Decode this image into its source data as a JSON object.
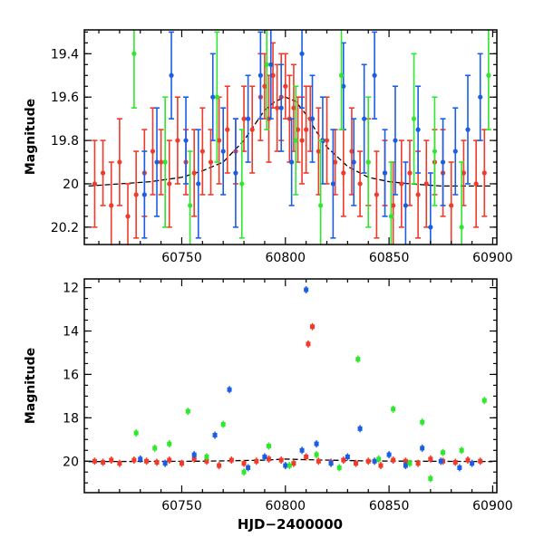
{
  "figure": {
    "xlabel": "HJD−2400000"
  },
  "series_colors": {
    "blue": "#1a5ee6",
    "green": "#2de82d",
    "red": "#f03a2a"
  },
  "chart_data": [
    {
      "type": "scatter",
      "panel": "top",
      "xlabel": "",
      "ylabel": "Magnitude",
      "xlim": [
        60703,
        60902
      ],
      "ylim": [
        20.28,
        19.29
      ],
      "y_inverted": true,
      "xticks": [
        60750,
        60800,
        60850,
        60900
      ],
      "yticks": [
        19.4,
        19.6,
        19.8,
        20,
        20.2
      ],
      "ytick_labels": [
        "19.4",
        "19.6",
        "19.8",
        "20",
        "20.2"
      ],
      "grid": false,
      "series": [
        {
          "color": "red",
          "error_bars": true,
          "x": [
            60708,
            60712,
            60716,
            60720,
            60724,
            60728,
            60732,
            60736,
            60740,
            60744,
            60748,
            60752,
            60756,
            60760,
            60764,
            60768,
            60772,
            60776,
            60780,
            60784,
            60788,
            60790,
            60792,
            60794,
            60796,
            60798,
            60800,
            60802,
            60804,
            60806,
            60808,
            60810,
            60812,
            60816,
            60820,
            60824,
            60828,
            60832,
            60836,
            60840,
            60844,
            60848,
            60852,
            60856,
            60860,
            60864,
            60868,
            60872,
            60876,
            60880,
            60886,
            60892,
            60896
          ],
          "y": [
            20.0,
            19.95,
            20.1,
            19.9,
            20.15,
            20.05,
            19.95,
            19.85,
            19.9,
            20.0,
            19.8,
            19.9,
            19.95,
            19.85,
            19.9,
            19.8,
            19.75,
            19.85,
            19.7,
            19.75,
            19.6,
            19.55,
            19.7,
            19.5,
            19.65,
            19.6,
            19.55,
            19.7,
            19.65,
            19.75,
            19.8,
            19.75,
            19.7,
            19.85,
            19.8,
            19.9,
            19.95,
            19.85,
            20.0,
            19.9,
            20.05,
            19.95,
            20.1,
            20.0,
            19.95,
            20.05,
            20.0,
            19.9,
            19.95,
            20.1,
            19.95,
            20.0,
            19.95
          ],
          "err": [
            0.2,
            0.15,
            0.2,
            0.2,
            0.15,
            0.2,
            0.2,
            0.2,
            0.15,
            0.2,
            0.2,
            0.15,
            0.2,
            0.2,
            0.15,
            0.2,
            0.2,
            0.15,
            0.15,
            0.2,
            0.2,
            0.15,
            0.2,
            0.15,
            0.2,
            0.2,
            0.15,
            0.2,
            0.2,
            0.15,
            0.2,
            0.2,
            0.15,
            0.2,
            0.2,
            0.15,
            0.2,
            0.2,
            0.15,
            0.2,
            0.2,
            0.15,
            0.2,
            0.2,
            0.15,
            0.2,
            0.2,
            0.15,
            0.2,
            0.2,
            0.15,
            0.2,
            0.2
          ]
        },
        {
          "color": "blue",
          "error_bars": true,
          "x": [
            60732,
            60738,
            60745,
            60752,
            60758,
            60765,
            60770,
            60776,
            60782,
            60788,
            60793,
            60798,
            60803,
            60808,
            60813,
            60818,
            60823,
            60828,
            60833,
            60838,
            60843,
            60848,
            60853,
            60858,
            60864,
            60870,
            60876,
            60882,
            60888,
            60894
          ],
          "y": [
            20.05,
            19.9,
            19.5,
            19.8,
            20.0,
            19.6,
            19.85,
            19.95,
            19.7,
            19.5,
            19.45,
            19.65,
            19.9,
            19.4,
            19.7,
            19.8,
            20.0,
            19.55,
            19.9,
            19.7,
            19.5,
            19.95,
            19.8,
            20.1,
            19.75,
            20.2,
            19.9,
            19.85,
            19.75,
            19.6
          ],
          "err": [
            0.2,
            0.25,
            0.2,
            0.2,
            0.25,
            0.2,
            0.2,
            0.25,
            0.2,
            0.2,
            0.25,
            0.2,
            0.2,
            0.25,
            0.2,
            0.2,
            0.25,
            0.2,
            0.2,
            0.25,
            0.2,
            0.2,
            0.25,
            0.2,
            0.2,
            0.25,
            0.2,
            0.2,
            0.25,
            0.2
          ]
        },
        {
          "color": "green",
          "error_bars": true,
          "x": [
            60727,
            60742,
            60754,
            60767,
            60779,
            60791,
            60805,
            60817,
            60827,
            60840,
            60851,
            60862,
            60872,
            60885,
            60898
          ],
          "y": [
            19.4,
            19.9,
            20.1,
            19.6,
            20.0,
            19.45,
            19.8,
            20.1,
            19.5,
            19.9,
            20.15,
            19.7,
            19.85,
            20.2,
            19.5
          ],
          "err": [
            0.25,
            0.3,
            0.25,
            0.3,
            0.25,
            0.3,
            0.25,
            0.3,
            0.25,
            0.3,
            0.25,
            0.3,
            0.25,
            0.3,
            0.25
          ]
        }
      ],
      "model_curve": {
        "x": [
          60705,
          60720,
          60735,
          60750,
          60760,
          60770,
          60780,
          60785,
          60790,
          60795,
          60800,
          60805,
          60810,
          60815,
          60820,
          60830,
          60840,
          60850,
          60860,
          60875,
          60890,
          60900
        ],
        "y": [
          20.01,
          20.0,
          19.99,
          19.97,
          19.94,
          19.9,
          19.8,
          19.73,
          19.66,
          19.62,
          19.6,
          19.62,
          19.68,
          19.76,
          19.83,
          19.92,
          19.97,
          19.99,
          20.0,
          20.01,
          20.01,
          20.01
        ]
      }
    },
    {
      "type": "scatter",
      "panel": "bottom",
      "xlabel": "HJD−2400000",
      "ylabel": "Magnitude",
      "xlim": [
        60703,
        60902
      ],
      "ylim": [
        21.45,
        11.6
      ],
      "y_inverted": true,
      "xticks": [
        60750,
        60800,
        60850,
        60900
      ],
      "yticks": [
        12,
        14,
        16,
        18,
        20
      ],
      "ytick_labels": [
        "12",
        "14",
        "16",
        "18",
        "20"
      ],
      "grid": false,
      "series": [
        {
          "color": "red",
          "x": [
            60708,
            60712,
            60716,
            60720,
            60727,
            60733,
            60738,
            60744,
            60750,
            60756,
            60762,
            60768,
            60774,
            60780,
            60786,
            60792,
            60798,
            60804,
            60810,
            60816,
            60822,
            60828,
            60834,
            60840,
            60846,
            60852,
            60858,
            60864,
            60870,
            60876,
            60882,
            60888,
            60894,
            60811,
            60813
          ],
          "y": [
            20.0,
            20.05,
            19.95,
            20.1,
            19.95,
            20.0,
            20.05,
            19.95,
            20.1,
            19.9,
            20.0,
            20.2,
            19.95,
            20.1,
            20.0,
            19.9,
            19.95,
            20.1,
            19.8,
            20.0,
            20.05,
            19.95,
            20.1,
            20.0,
            20.2,
            19.95,
            20.0,
            20.1,
            19.9,
            20.0,
            20.05,
            19.95,
            20.0,
            14.6,
            13.8
          ]
        },
        {
          "color": "blue",
          "x": [
            60730,
            60742,
            60756,
            60766,
            60773,
            60782,
            60790,
            60800,
            60808,
            60810,
            60815,
            60822,
            60830,
            60836,
            60843,
            60850,
            60858,
            60866,
            60875,
            60884,
            60890
          ],
          "y": [
            19.9,
            20.1,
            19.7,
            18.8,
            16.7,
            20.3,
            19.8,
            20.2,
            19.5,
            12.1,
            19.2,
            20.1,
            19.8,
            18.5,
            20.0,
            19.7,
            20.2,
            19.4,
            20.0,
            20.3,
            20.1
          ]
        },
        {
          "color": "green",
          "x": [
            60728,
            60737,
            60744,
            60753,
            60762,
            60770,
            60780,
            60792,
            60802,
            60815,
            60826,
            60835,
            60845,
            60852,
            60860,
            60866,
            60870,
            60876,
            60885,
            60896
          ],
          "y": [
            18.7,
            19.4,
            19.2,
            17.7,
            19.8,
            18.3,
            20.5,
            19.3,
            20.2,
            19.7,
            20.3,
            15.3,
            19.9,
            17.6,
            20.1,
            18.2,
            20.8,
            19.6,
            19.5,
            17.2
          ]
        }
      ],
      "model_curve": {
        "x": [
          60705,
          60760,
          60790,
          60800,
          60810,
          60840,
          60900
        ],
        "y": [
          20.02,
          20.0,
          19.95,
          19.9,
          19.93,
          19.99,
          20.02
        ]
      }
    }
  ]
}
